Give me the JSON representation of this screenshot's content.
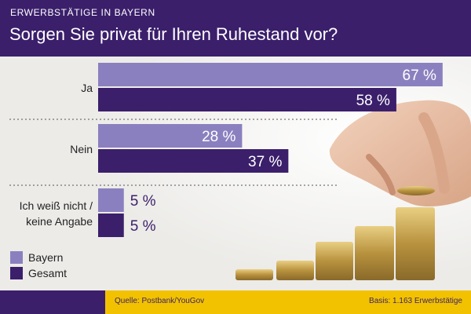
{
  "header": {
    "kicker": "ERWERBSTÄTIGE IN BAYERN",
    "title": "Sorgen Sie privat für Ihren Ruhestand vor?"
  },
  "footer": {
    "source": "Quelle: Postbank/YouGov",
    "basis": "Basis: 1.163 Erwerbstätige"
  },
  "colors": {
    "brand_purple": "#3b1f6b",
    "bayern_bar": "#8b80bf",
    "gesamt_bar": "#3b1f6b",
    "footer_yellow": "#f2c200"
  },
  "chart_data": {
    "type": "bar",
    "orientation": "horizontal",
    "categories": [
      "Ja",
      "Nein",
      "Ich weiß nicht / keine Angabe"
    ],
    "category_lines": [
      [
        "Ja"
      ],
      [
        "Nein"
      ],
      [
        "Ich weiß nicht /",
        "keine Angabe"
      ]
    ],
    "series": [
      {
        "name": "Bayern",
        "values": [
          67,
          28,
          5
        ],
        "labels": [
          "67 %",
          "28 %",
          "5 %"
        ]
      },
      {
        "name": "Gesamt",
        "values": [
          58,
          37,
          5
        ],
        "labels": [
          "58 %",
          "37 %",
          "5 %"
        ]
      }
    ],
    "xlim": [
      0,
      100
    ],
    "legend_position": "bottom-left",
    "grid": false
  }
}
